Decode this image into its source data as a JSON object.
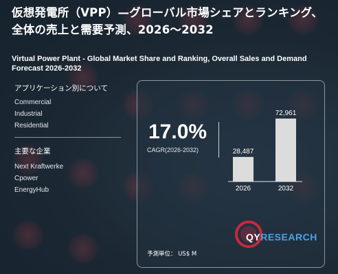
{
  "title_jp": "仮想発電所（VPP）—グローバル市場シェアとランキング、全体の売上と需要予測、2026～2032",
  "title_en": "Virtual Power Plant - Global Market Share and Ranking, Overall Sales and Demand Forecast 2026-2032",
  "applications": {
    "heading": "アプリケーション別について",
    "items": [
      "Commercial",
      "Industrial",
      "Residential"
    ]
  },
  "companies": {
    "heading": "主要な企業",
    "items": [
      "Next Kraftwerke",
      "Cpower",
      "EnergyHub"
    ]
  },
  "cagr": {
    "value": "17.0%",
    "label": "CAGR(2026-2032)"
  },
  "unit_label": "予測単位： US$ M",
  "logo": {
    "text_main": "QY",
    "text_accent": "RESEARCH"
  },
  "colors": {
    "background": "#182530",
    "bar": "#dcdcdc",
    "logo_accent": "#4aa3e8",
    "logo_ring": "#c8283c"
  },
  "chart_data": {
    "type": "bar",
    "categories": [
      "2026",
      "2032"
    ],
    "values": [
      28487,
      72961
    ],
    "value_labels": [
      "28,487",
      "72,961"
    ],
    "title": "",
    "xlabel": "",
    "ylabel": "",
    "ylim": [
      0,
      80000
    ],
    "grid": false,
    "legend": "none"
  }
}
